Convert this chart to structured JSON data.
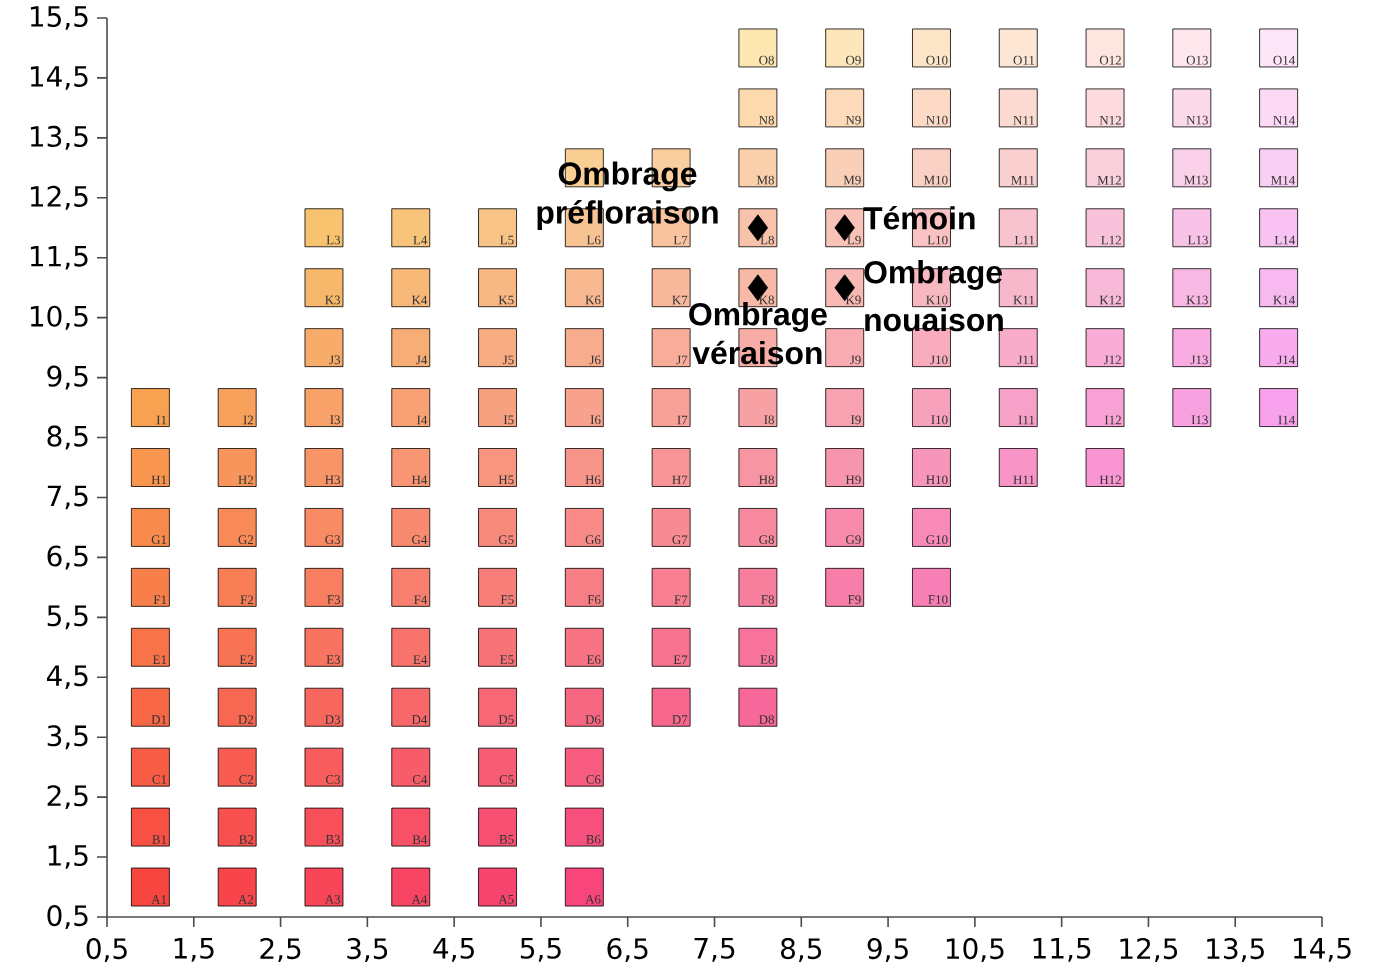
{
  "chart_data": {
    "type": "scatter",
    "xlim": [
      0.5,
      14.5
    ],
    "ylim": [
      0.5,
      15.5
    ],
    "xticks": [
      {
        "value": 0.5,
        "label": "0,5"
      },
      {
        "value": 1.5,
        "label": "1,5"
      },
      {
        "value": 2.5,
        "label": "2,5"
      },
      {
        "value": 3.5,
        "label": "3,5"
      },
      {
        "value": 4.5,
        "label": "4,5"
      },
      {
        "value": 5.5,
        "label": "5,5"
      },
      {
        "value": 6.5,
        "label": "6,5"
      },
      {
        "value": 7.5,
        "label": "7,5"
      },
      {
        "value": 8.5,
        "label": "8,5"
      },
      {
        "value": 9.5,
        "label": "9,5"
      },
      {
        "value": 10.5,
        "label": "10,5"
      },
      {
        "value": 11.5,
        "label": "11,5"
      },
      {
        "value": 12.5,
        "label": "12,5"
      },
      {
        "value": 13.5,
        "label": "13,5"
      },
      {
        "value": 14.5,
        "label": "14,5"
      }
    ],
    "yticks": [
      {
        "value": 0.5,
        "label": "0,5"
      },
      {
        "value": 1.5,
        "label": "1,5"
      },
      {
        "value": 2.5,
        "label": "2,5"
      },
      {
        "value": 3.5,
        "label": "3,5"
      },
      {
        "value": 4.5,
        "label": "4,5"
      },
      {
        "value": 5.5,
        "label": "5,5"
      },
      {
        "value": 6.5,
        "label": "6,5"
      },
      {
        "value": 7.5,
        "label": "7,5"
      },
      {
        "value": 8.5,
        "label": "8,5"
      },
      {
        "value": 9.5,
        "label": "9,5"
      },
      {
        "value": 10.5,
        "label": "10,5"
      },
      {
        "value": 11.5,
        "label": "11,5"
      },
      {
        "value": 12.5,
        "label": "12,5"
      },
      {
        "value": 13.5,
        "label": "13,5"
      },
      {
        "value": 14.5,
        "label": "14,5"
      },
      {
        "value": 15.5,
        "label": "15,5"
      }
    ],
    "series": [
      {
        "marker": "square",
        "x": [
          1,
          2,
          3,
          4,
          5,
          6
        ],
        "values": [
          1,
          1,
          1,
          1,
          1,
          1
        ],
        "colors": [
          "#f84540",
          "#f8454c",
          "#f84558",
          "#f84564",
          "#f84570",
          "#f8457c"
        ],
        "value_labels": [
          "A1",
          "A2",
          "A3",
          "A4",
          "A5",
          "A6"
        ]
      },
      {
        "marker": "square",
        "x": [
          1,
          2,
          3,
          4,
          5,
          6
        ],
        "values": [
          2,
          2,
          2,
          2,
          2,
          2
        ],
        "colors": [
          "#f85042",
          "#f8504e",
          "#f8505a",
          "#f85066",
          "#f85072",
          "#f8507e"
        ],
        "value_labels": [
          "B1",
          "B2",
          "B3",
          "B4",
          "B5",
          "B6"
        ]
      },
      {
        "marker": "square",
        "x": [
          1,
          2,
          3,
          4,
          5,
          6
        ],
        "values": [
          3,
          3,
          3,
          3,
          3,
          3
        ],
        "colors": [
          "#f85c44",
          "#f85c50",
          "#f85c5c",
          "#f85c68",
          "#f85c74",
          "#f85c80"
        ],
        "value_labels": [
          "C1",
          "C2",
          "C3",
          "C4",
          "C5",
          "C6"
        ]
      },
      {
        "marker": "square",
        "x": [
          1,
          2,
          3,
          4,
          5,
          6,
          7,
          8
        ],
        "values": [
          4,
          4,
          4,
          4,
          4,
          4,
          4,
          4
        ],
        "colors": [
          "#f86746",
          "#f86752",
          "#f8675e",
          "#f8676a",
          "#f86776",
          "#f86782",
          "#f8678e",
          "#f8679a"
        ],
        "value_labels": [
          "D1",
          "D2",
          "D3",
          "D4",
          "D5",
          "D6",
          "D7",
          "D8"
        ]
      },
      {
        "marker": "square",
        "x": [
          1,
          2,
          3,
          4,
          5,
          6,
          7,
          8
        ],
        "values": [
          5,
          5,
          5,
          5,
          5,
          5,
          5,
          5
        ],
        "colors": [
          "#f87348",
          "#f87354",
          "#f87360",
          "#f8736c",
          "#f87378",
          "#f87384",
          "#f87390",
          "#f8739c"
        ],
        "value_labels": [
          "E1",
          "E2",
          "E3",
          "E4",
          "E5",
          "E6",
          "E7",
          "E8"
        ]
      },
      {
        "marker": "square",
        "x": [
          1,
          2,
          3,
          4,
          5,
          6,
          7,
          8,
          9,
          10
        ],
        "values": [
          6,
          6,
          6,
          6,
          6,
          6,
          6,
          6,
          6,
          6
        ],
        "colors": [
          "#f87e4a",
          "#f87e56",
          "#f87e62",
          "#f87e6e",
          "#f87e7a",
          "#f87e86",
          "#f87e92",
          "#f87e9e",
          "#f87eaa",
          "#f87eb6"
        ],
        "value_labels": [
          "F1",
          "F2",
          "F3",
          "F4",
          "F5",
          "F6",
          "F7",
          "F8",
          "F9",
          "F10"
        ]
      },
      {
        "marker": "square",
        "x": [
          1,
          2,
          3,
          4,
          5,
          6,
          7,
          8,
          9,
          10
        ],
        "values": [
          7,
          7,
          7,
          7,
          7,
          7,
          7,
          7,
          7,
          7
        ],
        "colors": [
          "#f88a4c",
          "#f88a58",
          "#f88a64",
          "#f88a70",
          "#f88a7c",
          "#f88a88",
          "#f88a94",
          "#f88aa0",
          "#f88aac",
          "#f88ab8"
        ],
        "value_labels": [
          "G1",
          "G2",
          "G3",
          "G4",
          "G5",
          "G6",
          "G7",
          "G8",
          "G9",
          "G10"
        ]
      },
      {
        "marker": "square",
        "x": [
          1,
          2,
          3,
          4,
          5,
          6,
          7,
          8,
          9,
          10,
          11,
          12
        ],
        "values": [
          8,
          8,
          8,
          8,
          8,
          8,
          8,
          8,
          8,
          8,
          8,
          8
        ],
        "colors": [
          "#f8954e",
          "#f8955a",
          "#f89566",
          "#f89572",
          "#f8957e",
          "#f8958a",
          "#f89596",
          "#f895a2",
          "#f895ae",
          "#f895ba",
          "#f895c6",
          "#f895d2"
        ],
        "value_labels": [
          "H1",
          "H2",
          "H3",
          "H4",
          "H5",
          "H6",
          "H7",
          "H8",
          "H9",
          "H10",
          "H11",
          "H12"
        ]
      },
      {
        "marker": "square",
        "x": [
          1,
          2,
          3,
          4,
          5,
          6,
          7,
          8,
          9,
          10,
          11,
          12,
          13,
          14
        ],
        "values": [
          9,
          9,
          9,
          9,
          9,
          9,
          9,
          9,
          9,
          9,
          9,
          9,
          9,
          9
        ],
        "colors": [
          "#f8a150",
          "#f8a15c",
          "#f8a168",
          "#f8a174",
          "#f8a180",
          "#f8a18c",
          "#f8a198",
          "#f8a1a4",
          "#f8a1b0",
          "#f8a1bc",
          "#f8a1c8",
          "#f8a1d4",
          "#f8a1e0",
          "#f8a1ec"
        ],
        "value_labels": [
          "I1",
          "I2",
          "I3",
          "I4",
          "I5",
          "I6",
          "I7",
          "I8",
          "I9",
          "I10",
          "I11",
          "I12",
          "I13",
          "I14"
        ]
      },
      {
        "marker": "square",
        "x": [
          3,
          4,
          5,
          6,
          7,
          8,
          9,
          10,
          11,
          12,
          13,
          14
        ],
        "values": [
          10,
          10,
          10,
          10,
          10,
          10,
          10,
          10,
          10,
          10,
          10,
          10
        ],
        "colors": [
          "#f8ac6a",
          "#f8ac76",
          "#f8ac82",
          "#f8ac8e",
          "#f8ac9a",
          "#f8aca6",
          "#f8acb2",
          "#f8acbe",
          "#f8acca",
          "#f8acd6",
          "#f8ace2",
          "#f8acee"
        ],
        "value_labels": [
          "J3",
          "J4",
          "J5",
          "J6",
          "J7",
          null,
          "J9",
          "J10",
          "J11",
          "J12",
          "J13",
          "J14"
        ]
      },
      {
        "marker": "square",
        "x": [
          3,
          4,
          5,
          6,
          7,
          8,
          9,
          10,
          11,
          12,
          13,
          14
        ],
        "values": [
          11,
          11,
          11,
          11,
          11,
          11,
          11,
          11,
          11,
          11,
          11,
          11
        ],
        "colors": [
          "#f8b86c",
          "#f8b878",
          "#f8b884",
          "#f8b890",
          "#f8b89c",
          "#f8b8a8",
          "#f8b8b4",
          "#f8b8c0",
          "#f8b8cc",
          "#f8b8d8",
          "#f8b8e4",
          "#f8b8f0"
        ],
        "value_labels": [
          "K3",
          "K4",
          "K5",
          "K6",
          "K7",
          "K8",
          "K9",
          "K10",
          "K11",
          "K12",
          "K13",
          "K14"
        ]
      },
      {
        "marker": "square",
        "x": [
          3,
          4,
          5,
          6,
          7,
          8,
          9,
          10,
          11,
          12,
          13,
          14
        ],
        "values": [
          12,
          12,
          12,
          12,
          12,
          12,
          12,
          12,
          12,
          12,
          12,
          12
        ],
        "colors": [
          "#f8c36e",
          "#f8c37a",
          "#f8c386",
          "#f8c392",
          "#f8c39e",
          "#f8c3aa",
          "#f8c3b6",
          "#f8c3c2",
          "#f8c3ce",
          "#f8c3da",
          "#f8c3e6",
          "#f8c3f2"
        ],
        "value_labels": [
          "L3",
          "L4",
          "L5",
          "L6",
          "L7",
          "L8",
          "L9",
          "L10",
          "L11",
          "L12",
          "L13",
          "L14"
        ]
      },
      {
        "marker": "square",
        "x": [
          6,
          7,
          8,
          9,
          10,
          11,
          12,
          13,
          14
        ],
        "values": [
          13,
          13,
          13,
          13,
          13,
          13,
          13,
          13,
          13
        ],
        "colors": [
          "#facf94",
          "#facfa0",
          "#facfac",
          "#facfb8",
          "#facfc4",
          "#facfd0",
          "#facfdc",
          "#facfe8",
          "#facff4"
        ],
        "value_labels": [
          null,
          null,
          "M8",
          "M9",
          "M10",
          "M11",
          "M12",
          "M13",
          "M14"
        ]
      },
      {
        "marker": "square",
        "x": [
          8,
          9,
          10,
          11,
          12,
          13,
          14
        ],
        "values": [
          14,
          14,
          14,
          14,
          14,
          14,
          14
        ],
        "colors": [
          "#fcdaae",
          "#fcdaba",
          "#fcdac6",
          "#fcdad2",
          "#fcdade",
          "#fcdaea",
          "#fcdaf6"
        ],
        "value_labels": [
          "N8",
          "N9",
          "N10",
          "N11",
          "N12",
          "N13",
          "N14"
        ]
      },
      {
        "marker": "square",
        "x": [
          8,
          9,
          10,
          11,
          12,
          13,
          14
        ],
        "values": [
          15,
          15,
          15,
          15,
          15,
          15,
          15
        ],
        "colors": [
          "#fde6b0",
          "#fde6bc",
          "#fde6c8",
          "#fde6d4",
          "#fde6e0",
          "#fde6ec",
          "#fde6f8"
        ],
        "value_labels": [
          "O8",
          "O9",
          "O10",
          "O11",
          "O12",
          "O13",
          "O14"
        ]
      },
      {
        "name": "Ombrage préfloraison",
        "marker": "diamond",
        "color": "#000000",
        "x": [
          8
        ],
        "values": [
          12
        ]
      },
      {
        "name": "Témoin",
        "marker": "diamond",
        "color": "#000000",
        "x": [
          9
        ],
        "values": [
          12
        ]
      },
      {
        "name": "Ombrage véraison",
        "marker": "diamond",
        "color": "#000000",
        "x": [
          8
        ],
        "values": [
          11
        ]
      },
      {
        "name": "Ombrage nouaison",
        "marker": "diamond",
        "color": "#000000",
        "x": [
          9
        ],
        "values": [
          11
        ]
      }
    ]
  }
}
